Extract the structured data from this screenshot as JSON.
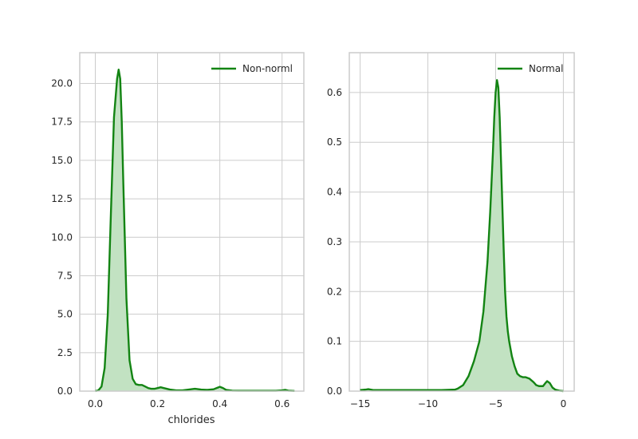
{
  "chart_data": [
    {
      "type": "area",
      "legend": {
        "label": "Non-norml",
        "placement": "top-right"
      },
      "xlabel": "chlorides",
      "ylabel": "",
      "xlim": [
        -0.05,
        0.67
      ],
      "ylim": [
        0,
        22
      ],
      "xticks": [
        0.0,
        0.2,
        0.4,
        0.6
      ],
      "xtick_labels": [
        "0.0",
        "0.2",
        "0.4",
        "0.6"
      ],
      "yticks": [
        0.0,
        2.5,
        5.0,
        7.5,
        10.0,
        12.5,
        15.0,
        17.5,
        20.0
      ],
      "ytick_labels": [
        "0.0",
        "2.5",
        "5.0",
        "7.5",
        "10.0",
        "12.5",
        "15.0",
        "17.5",
        "20.0"
      ],
      "grid": true,
      "color": "#138413",
      "fill_color": "#c2e2c2",
      "series": [
        {
          "x": [
            0.0,
            0.01,
            0.02,
            0.03,
            0.04,
            0.05,
            0.06,
            0.07,
            0.075,
            0.08,
            0.085,
            0.09,
            0.1,
            0.11,
            0.12,
            0.13,
            0.14,
            0.15,
            0.16,
            0.17,
            0.18,
            0.19,
            0.2,
            0.21,
            0.22,
            0.24,
            0.26,
            0.28,
            0.3,
            0.32,
            0.34,
            0.36,
            0.38,
            0.39,
            0.4,
            0.41,
            0.42,
            0.44,
            0.46,
            0.48,
            0.5,
            0.52,
            0.54,
            0.56,
            0.58,
            0.6,
            0.61,
            0.62,
            0.64
          ],
          "y": [
            0.0,
            0.05,
            0.3,
            1.5,
            5.0,
            11.5,
            17.8,
            20.3,
            20.9,
            20.3,
            17.5,
            13.5,
            6.0,
            2.0,
            0.8,
            0.45,
            0.4,
            0.4,
            0.3,
            0.2,
            0.15,
            0.15,
            0.2,
            0.25,
            0.2,
            0.1,
            0.05,
            0.05,
            0.1,
            0.15,
            0.1,
            0.08,
            0.12,
            0.2,
            0.28,
            0.2,
            0.08,
            0.03,
            0.02,
            0.02,
            0.02,
            0.02,
            0.02,
            0.02,
            0.02,
            0.05,
            0.08,
            0.03,
            0.01
          ]
        }
      ]
    },
    {
      "type": "area",
      "legend": {
        "label": "Normal",
        "placement": "top-right"
      },
      "xlabel": "",
      "ylabel": "",
      "xlim": [
        -15.8,
        0.8
      ],
      "ylim": [
        0,
        0.68
      ],
      "xticks": [
        -15,
        -10,
        -5,
        0
      ],
      "xtick_labels": [
        "−15",
        "−10",
        "−5",
        "0"
      ],
      "yticks": [
        0.0,
        0.1,
        0.2,
        0.3,
        0.4,
        0.5,
        0.6
      ],
      "ytick_labels": [
        "0.0",
        "0.1",
        "0.2",
        "0.3",
        "0.4",
        "0.5",
        "0.6"
      ],
      "grid": true,
      "color": "#138413",
      "fill_color": "#c2e2c2",
      "series": [
        {
          "x": [
            -15.0,
            -14.6,
            -14.4,
            -14.2,
            -14.0,
            -13.0,
            -12.0,
            -11.0,
            -10.0,
            -9.0,
            -8.0,
            -7.8,
            -7.4,
            -7.0,
            -6.6,
            -6.2,
            -5.9,
            -5.6,
            -5.4,
            -5.2,
            -5.1,
            -5.0,
            -4.9,
            -4.8,
            -4.7,
            -4.6,
            -4.5,
            -4.4,
            -4.3,
            -4.2,
            -4.1,
            -4.0,
            -3.8,
            -3.6,
            -3.4,
            -3.2,
            -3.0,
            -2.8,
            -2.5,
            -2.2,
            -2.0,
            -1.8,
            -1.5,
            -1.3,
            -1.2,
            -1.0,
            -0.8,
            -0.6,
            -0.3,
            0.0
          ],
          "y": [
            0.002,
            0.003,
            0.004,
            0.003,
            0.002,
            0.002,
            0.002,
            0.002,
            0.002,
            0.002,
            0.003,
            0.005,
            0.012,
            0.03,
            0.06,
            0.1,
            0.16,
            0.26,
            0.36,
            0.48,
            0.55,
            0.6,
            0.625,
            0.61,
            0.55,
            0.46,
            0.37,
            0.28,
            0.2,
            0.15,
            0.12,
            0.1,
            0.07,
            0.05,
            0.035,
            0.03,
            0.028,
            0.028,
            0.025,
            0.018,
            0.012,
            0.01,
            0.01,
            0.017,
            0.02,
            0.016,
            0.007,
            0.003,
            0.001,
            0.0
          ]
        }
      ]
    }
  ]
}
